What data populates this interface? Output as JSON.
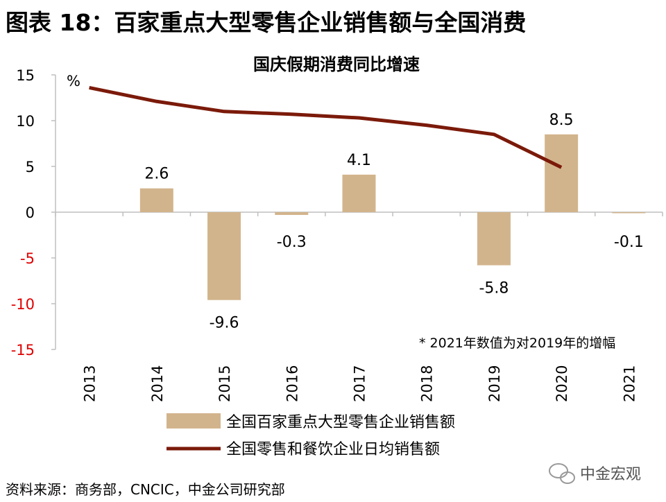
{
  "page": {
    "title": "图表 18：百家重点大型零售企业销售额与全国消费",
    "source": "资料来源：商务部，CNCIC，中金公司研究部",
    "watermark": "中金宏观"
  },
  "chart_data": {
    "type": "bar",
    "title": "国庆假期消费同比增速",
    "ylabel": "%",
    "ylim": [
      -15,
      15
    ],
    "yticks": [
      15,
      10,
      5,
      0,
      -5,
      -10,
      -15
    ],
    "negative_tick_color": "#E00000",
    "categories": [
      "2013",
      "2014",
      "2015",
      "2016",
      "2017",
      "2018",
      "2019",
      "2020",
      "2021"
    ],
    "note": "* 2021年数值为对2019年的增幅",
    "series": [
      {
        "name": "全国百家重点大型零售企业销售额",
        "type": "bar",
        "color": "#D2B48C",
        "values": [
          null,
          2.6,
          -9.6,
          -0.3,
          4.1,
          null,
          -5.8,
          8.5,
          -0.1
        ],
        "labels": [
          "",
          "2.6",
          "-9.6",
          "-0.3",
          "4.1",
          "",
          "-5.8",
          "8.5",
          "-0.1"
        ]
      },
      {
        "name": "全国零售和餐饮企业日均销售额",
        "type": "line",
        "color": "#7B1A0A",
        "values": [
          13.6,
          12.1,
          11.0,
          10.7,
          10.3,
          9.5,
          8.5,
          4.9,
          null
        ]
      }
    ]
  }
}
